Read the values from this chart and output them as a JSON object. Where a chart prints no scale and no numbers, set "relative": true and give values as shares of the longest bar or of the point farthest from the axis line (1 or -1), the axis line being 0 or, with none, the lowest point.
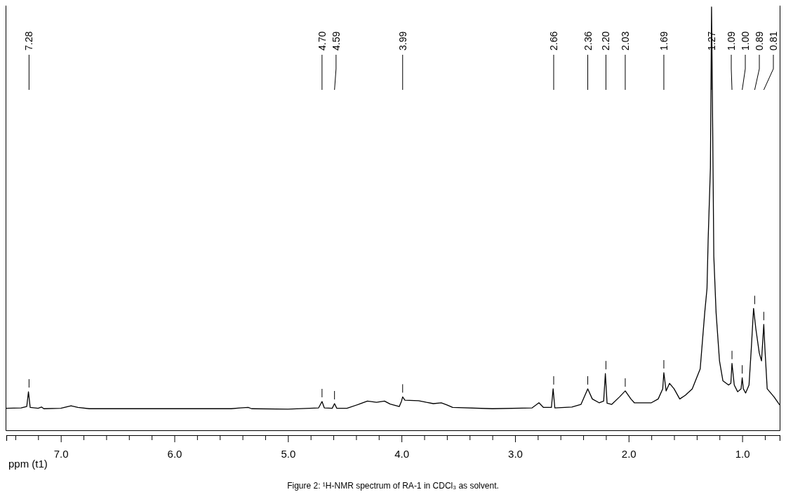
{
  "chart_data": {
    "type": "line",
    "relative": true,
    "xlabel": "ppm (t1)",
    "xlim": [
      7.48,
      0.67
    ],
    "xticks": [
      {
        "value": 7.4,
        "label": null
      },
      {
        "value": 7.2,
        "label": null
      },
      {
        "value": 7,
        "label": "7.0"
      },
      {
        "value": 6.8,
        "label": null
      },
      {
        "value": 6.6,
        "label": null
      },
      {
        "value": 6.4,
        "label": null
      },
      {
        "value": 6.2,
        "label": null
      },
      {
        "value": 6,
        "label": "6.0"
      },
      {
        "value": 5.8,
        "label": null
      },
      {
        "value": 5.6,
        "label": null
      },
      {
        "value": 5.4,
        "label": null
      },
      {
        "value": 5.2,
        "label": null
      },
      {
        "value": 5,
        "label": "5.0"
      },
      {
        "value": 4.8,
        "label": null
      },
      {
        "value": 4.6,
        "label": null
      },
      {
        "value": 4.4,
        "label": null
      },
      {
        "value": 4.2,
        "label": null
      },
      {
        "value": 4,
        "label": "4.0"
      },
      {
        "value": 3.8,
        "label": null
      },
      {
        "value": 3.6,
        "label": null
      },
      {
        "value": 3.4,
        "label": null
      },
      {
        "value": 3.2,
        "label": null
      },
      {
        "value": 3,
        "label": "3.0"
      },
      {
        "value": 2.8,
        "label": null
      },
      {
        "value": 2.6,
        "label": null
      },
      {
        "value": 2.4,
        "label": null
      },
      {
        "value": 2.2,
        "label": null
      },
      {
        "value": 2,
        "label": "2.0"
      },
      {
        "value": 1.8,
        "label": null
      },
      {
        "value": 1.6,
        "label": null
      },
      {
        "value": 1.4,
        "label": null
      },
      {
        "value": 1.2,
        "label": null
      },
      {
        "value": 1,
        "label": "1.0"
      },
      {
        "value": 0.8,
        "label": null
      }
    ],
    "grid": false,
    "legend": false,
    "marker": "none",
    "line_style": "solid",
    "series": [
      {
        "color": "#000000",
        "x": [
          7.48,
          7.35,
          7.3,
          7.285,
          7.27,
          7.2,
          7.17,
          7.15,
          7.0,
          6.91,
          6.85,
          6.75,
          6.0,
          5.5,
          5.42,
          5.35,
          5.32,
          5.0,
          4.73,
          4.7,
          4.68,
          4.61,
          4.59,
          4.57,
          4.48,
          4.38,
          4.3,
          4.22,
          4.15,
          4.1,
          4.02,
          4.0,
          3.99,
          3.97,
          3.85,
          3.78,
          3.72,
          3.65,
          3.6,
          3.55,
          3.2,
          2.85,
          2.79,
          2.75,
          2.68,
          2.665,
          2.65,
          2.5,
          2.42,
          2.36,
          2.32,
          2.26,
          2.22,
          2.205,
          2.19,
          2.15,
          2.08,
          2.03,
          1.98,
          1.95,
          1.8,
          1.74,
          1.7,
          1.69,
          1.67,
          1.64,
          1.6,
          1.55,
          1.5,
          1.44,
          1.37,
          1.33,
          1.31,
          1.3,
          1.28,
          1.27,
          1.26,
          1.25,
          1.23,
          1.2,
          1.17,
          1.12,
          1.1,
          1.09,
          1.07,
          1.04,
          1.01,
          1.0,
          0.99,
          0.97,
          0.94,
          0.92,
          0.9,
          0.88,
          0.85,
          0.83,
          0.81,
          0.8,
          0.78,
          0.72,
          0.67
        ],
        "values": [
          0.052,
          0.053,
          0.056,
          0.091,
          0.054,
          0.052,
          0.055,
          0.051,
          0.052,
          0.058,
          0.054,
          0.051,
          0.051,
          0.051,
          0.053,
          0.054,
          0.051,
          0.05,
          0.053,
          0.068,
          0.053,
          0.052,
          0.063,
          0.052,
          0.052,
          0.061,
          0.069,
          0.066,
          0.069,
          0.062,
          0.056,
          0.069,
          0.079,
          0.071,
          0.07,
          0.066,
          0.063,
          0.065,
          0.06,
          0.054,
          0.051,
          0.053,
          0.065,
          0.054,
          0.054,
          0.098,
          0.053,
          0.055,
          0.061,
          0.098,
          0.074,
          0.065,
          0.069,
          0.134,
          0.064,
          0.061,
          0.079,
          0.093,
          0.074,
          0.065,
          0.065,
          0.074,
          0.098,
          0.136,
          0.093,
          0.111,
          0.098,
          0.074,
          0.083,
          0.098,
          0.145,
          0.278,
          0.335,
          0.449,
          0.62,
          1,
          0.715,
          0.411,
          0.278,
          0.164,
          0.117,
          0.107,
          0.111,
          0.158,
          0.107,
          0.091,
          0.098,
          0.124,
          0.098,
          0.088,
          0.107,
          0.193,
          0.288,
          0.24,
          0.183,
          0.164,
          0.25,
          0.193,
          0.098,
          0.079,
          0.06
        ]
      }
    ],
    "annotations": [
      {
        "text": "7.28",
        "x": 7.28
      },
      {
        "text": "4.70",
        "x": 4.7
      },
      {
        "text": "4.59",
        "x": 4.59
      },
      {
        "text": "3.99",
        "x": 3.99
      },
      {
        "text": "2.66",
        "x": 2.66
      },
      {
        "text": "2.36",
        "x": 2.36
      },
      {
        "text": "2.20",
        "x": 2.2
      },
      {
        "text": "2.03",
        "x": 2.03
      },
      {
        "text": "1.69",
        "x": 1.69
      },
      {
        "text": "1.27",
        "x": 1.27
      },
      {
        "text": "1.09",
        "x": 1.09
      },
      {
        "text": "1.00",
        "x": 1.0
      },
      {
        "text": "0.89",
        "x": 0.89
      },
      {
        "text": "0.81",
        "x": 0.81
      },
      "Figure 2: ¹H-NMR spectrum of RA-1 in CDCl₃ as solvent."
    ]
  }
}
